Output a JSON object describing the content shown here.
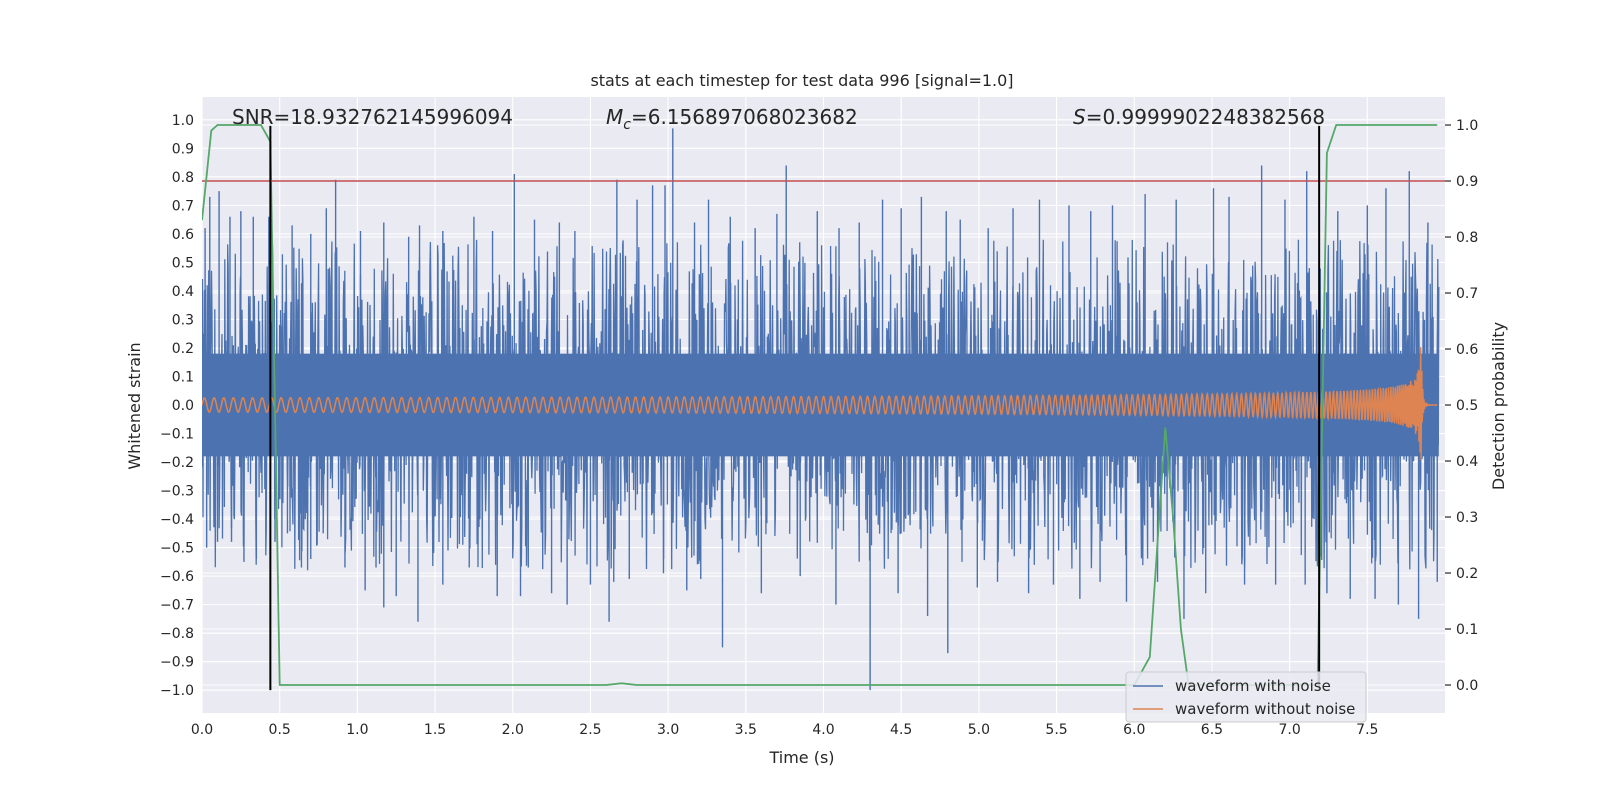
{
  "chart_data": {
    "type": "line",
    "title": "stats at each timestep for test data 996 [signal=1.0]",
    "xlabel": "Time (s)",
    "ylabel": "Whitened strain",
    "y2label": "Detection probability",
    "xlim": [
      0.0,
      8.0
    ],
    "ylim": [
      -1.08,
      1.08
    ],
    "y2lim": [
      -0.05,
      1.05
    ],
    "xticks": [
      "0.0",
      "0.5",
      "1.0",
      "1.5",
      "2.0",
      "2.5",
      "3.0",
      "3.5",
      "4.0",
      "4.5",
      "5.0",
      "5.5",
      "6.0",
      "6.5",
      "7.0",
      "7.5"
    ],
    "yticks": [
      "1.0",
      "0.9",
      "0.8",
      "0.7",
      "0.6",
      "0.5",
      "0.4",
      "0.3",
      "0.2",
      "0.1",
      "0.0",
      "-0.1",
      "-0.2",
      "-0.3",
      "-0.4",
      "-0.5",
      "-0.6",
      "-0.7",
      "-0.8",
      "-0.9",
      "-1.0"
    ],
    "y2ticks": [
      "1.0",
      "0.9",
      "0.8",
      "0.7",
      "0.6",
      "0.5",
      "0.4",
      "0.3",
      "0.2",
      "0.1",
      "0.0"
    ],
    "annotations": {
      "snr": "SNR=18.932762145996094",
      "mc_symbol": "M",
      "mc_sub": "c",
      "mc_value": "=6.156897068023682",
      "s_symbol": "S",
      "s_value": "=0.9999902248382568"
    },
    "threshold": {
      "axis": "y2",
      "value": 0.9,
      "color": "#c44e52"
    },
    "vlines": [
      {
        "x": 0.44,
        "ymin": -1.0,
        "ymax": 1.0
      },
      {
        "x": 7.19,
        "ymin": -1.0,
        "ymax": 1.0
      }
    ],
    "series": [
      {
        "name": "waveform with noise",
        "color": "#4c72b0",
        "axis": "y1",
        "kind": "noise",
        "t_end": 7.96,
        "band_center_spread": 0.25,
        "spikes": [
          [
            0.02,
            0.62
          ],
          [
            0.05,
            0.73
          ],
          [
            0.11,
            0.75
          ],
          [
            0.18,
            0.66
          ],
          [
            0.25,
            0.68
          ],
          [
            0.33,
            0.66
          ],
          [
            0.43,
            0.66
          ],
          [
            0.58,
            0.63
          ],
          [
            0.7,
            0.6
          ],
          [
            0.8,
            0.69
          ],
          [
            0.86,
            0.79
          ],
          [
            1.02,
            0.61
          ],
          [
            1.17,
            0.64
          ],
          [
            1.33,
            0.59
          ],
          [
            1.4,
            0.63
          ],
          [
            1.55,
            0.61
          ],
          [
            1.75,
            0.66
          ],
          [
            1.87,
            0.61
          ],
          [
            2.01,
            0.81
          ],
          [
            2.14,
            0.65
          ],
          [
            2.3,
            0.64
          ],
          [
            2.4,
            0.61
          ],
          [
            2.67,
            0.79
          ],
          [
            2.8,
            0.72
          ],
          [
            2.9,
            0.77
          ],
          [
            2.98,
            0.77
          ],
          [
            3.03,
            0.97
          ],
          [
            3.17,
            0.64
          ],
          [
            3.26,
            0.72
          ],
          [
            3.4,
            0.66
          ],
          [
            3.56,
            0.62
          ],
          [
            3.7,
            0.67
          ],
          [
            3.76,
            0.84
          ],
          [
            3.96,
            0.68
          ],
          [
            4.1,
            0.62
          ],
          [
            4.23,
            0.64
          ],
          [
            4.38,
            0.72
          ],
          [
            4.5,
            0.69
          ],
          [
            4.63,
            0.73
          ],
          [
            4.79,
            0.68
          ],
          [
            4.88,
            0.65
          ],
          [
            5.06,
            0.62
          ],
          [
            5.22,
            0.69
          ],
          [
            5.39,
            0.72
          ],
          [
            5.58,
            0.7
          ],
          [
            5.72,
            0.68
          ],
          [
            5.86,
            0.7
          ],
          [
            6.07,
            0.74
          ],
          [
            6.27,
            0.72
          ],
          [
            6.51,
            0.76
          ],
          [
            6.61,
            0.73
          ],
          [
            6.82,
            0.84
          ],
          [
            6.97,
            0.72
          ],
          [
            7.11,
            0.82
          ],
          [
            7.31,
            0.68
          ],
          [
            7.5,
            0.7
          ],
          [
            7.62,
            0.76
          ],
          [
            7.77,
            0.82
          ],
          [
            7.89,
            0.64
          ],
          [
            0.03,
            -0.5
          ],
          [
            0.1,
            -0.48
          ],
          [
            0.19,
            -0.48
          ],
          [
            0.27,
            -0.55
          ],
          [
            0.35,
            -0.54
          ],
          [
            0.47,
            -0.48
          ],
          [
            0.55,
            -0.45
          ],
          [
            0.64,
            -0.57
          ],
          [
            0.7,
            -0.54
          ],
          [
            0.78,
            -0.45
          ],
          [
            0.92,
            -0.57
          ],
          [
            1.05,
            -0.65
          ],
          [
            1.12,
            -0.57
          ],
          [
            1.17,
            -0.71
          ],
          [
            1.25,
            -0.67
          ],
          [
            1.39,
            -0.76
          ],
          [
            1.55,
            -0.63
          ],
          [
            1.72,
            -0.57
          ],
          [
            1.9,
            -0.67
          ],
          [
            2.05,
            -0.67
          ],
          [
            2.1,
            -0.57
          ],
          [
            2.25,
            -0.66
          ],
          [
            2.35,
            -0.7
          ],
          [
            2.5,
            -0.63
          ],
          [
            2.62,
            -0.76
          ],
          [
            2.65,
            -0.62
          ],
          [
            2.75,
            -0.61
          ],
          [
            2.97,
            -0.59
          ],
          [
            3.12,
            -0.65
          ],
          [
            3.21,
            -0.61
          ],
          [
            3.35,
            -0.85
          ],
          [
            3.6,
            -0.66
          ],
          [
            3.85,
            -0.6
          ],
          [
            4.08,
            -0.7
          ],
          [
            4.3,
            -1.0
          ],
          [
            4.48,
            -0.66
          ],
          [
            4.67,
            -0.74
          ],
          [
            4.8,
            -0.87
          ],
          [
            4.99,
            -0.64
          ],
          [
            5.12,
            -0.62
          ],
          [
            5.32,
            -0.66
          ],
          [
            5.48,
            -0.63
          ],
          [
            5.65,
            -0.68
          ],
          [
            5.78,
            -0.62
          ],
          [
            5.95,
            -0.69
          ],
          [
            6.15,
            -0.62
          ],
          [
            6.32,
            -0.75
          ],
          [
            6.46,
            -0.66
          ],
          [
            6.71,
            -0.63
          ],
          [
            6.91,
            -0.63
          ],
          [
            7.1,
            -0.63
          ],
          [
            7.24,
            -0.66
          ],
          [
            7.39,
            -0.68
          ],
          [
            7.55,
            -0.68
          ],
          [
            7.7,
            -0.7
          ],
          [
            7.83,
            -0.75
          ],
          [
            7.95,
            -0.62
          ]
        ]
      },
      {
        "name": "waveform without noise",
        "color": "#dd8452",
        "axis": "y1",
        "kind": "chirp",
        "t_start": 0.0,
        "t_merge": 7.84,
        "t_end": 7.95,
        "amp_start": 0.025,
        "cycles_per_second_start": 16
      },
      {
        "name": "detection probability",
        "color": "#55a868",
        "axis": "y2",
        "kind": "line",
        "x": [
          0.0,
          0.06,
          0.1,
          0.2,
          0.3,
          0.38,
          0.4,
          0.44,
          0.5,
          1.0,
          2.0,
          2.6,
          2.7,
          2.8,
          3.0,
          4.0,
          5.0,
          5.5,
          6.0,
          6.1,
          6.2,
          6.25,
          6.3,
          6.35,
          7.1,
          7.18,
          7.24,
          7.3,
          7.5,
          7.95
        ],
        "y": [
          0.83,
          0.99,
          1.0,
          1.0,
          1.0,
          1.0,
          0.99,
          0.97,
          0.0,
          0.0,
          0.0,
          0.0,
          0.003,
          0.0,
          0.0,
          0.0,
          0.0,
          0.0,
          0.0,
          0.05,
          0.46,
          0.3,
          0.1,
          0.0,
          0.0,
          0.0,
          0.95,
          1.0,
          1.0,
          1.0
        ]
      }
    ],
    "legend": {
      "placement": "bottom-right",
      "entries": [
        "waveform with noise",
        "waveform without noise"
      ]
    }
  }
}
